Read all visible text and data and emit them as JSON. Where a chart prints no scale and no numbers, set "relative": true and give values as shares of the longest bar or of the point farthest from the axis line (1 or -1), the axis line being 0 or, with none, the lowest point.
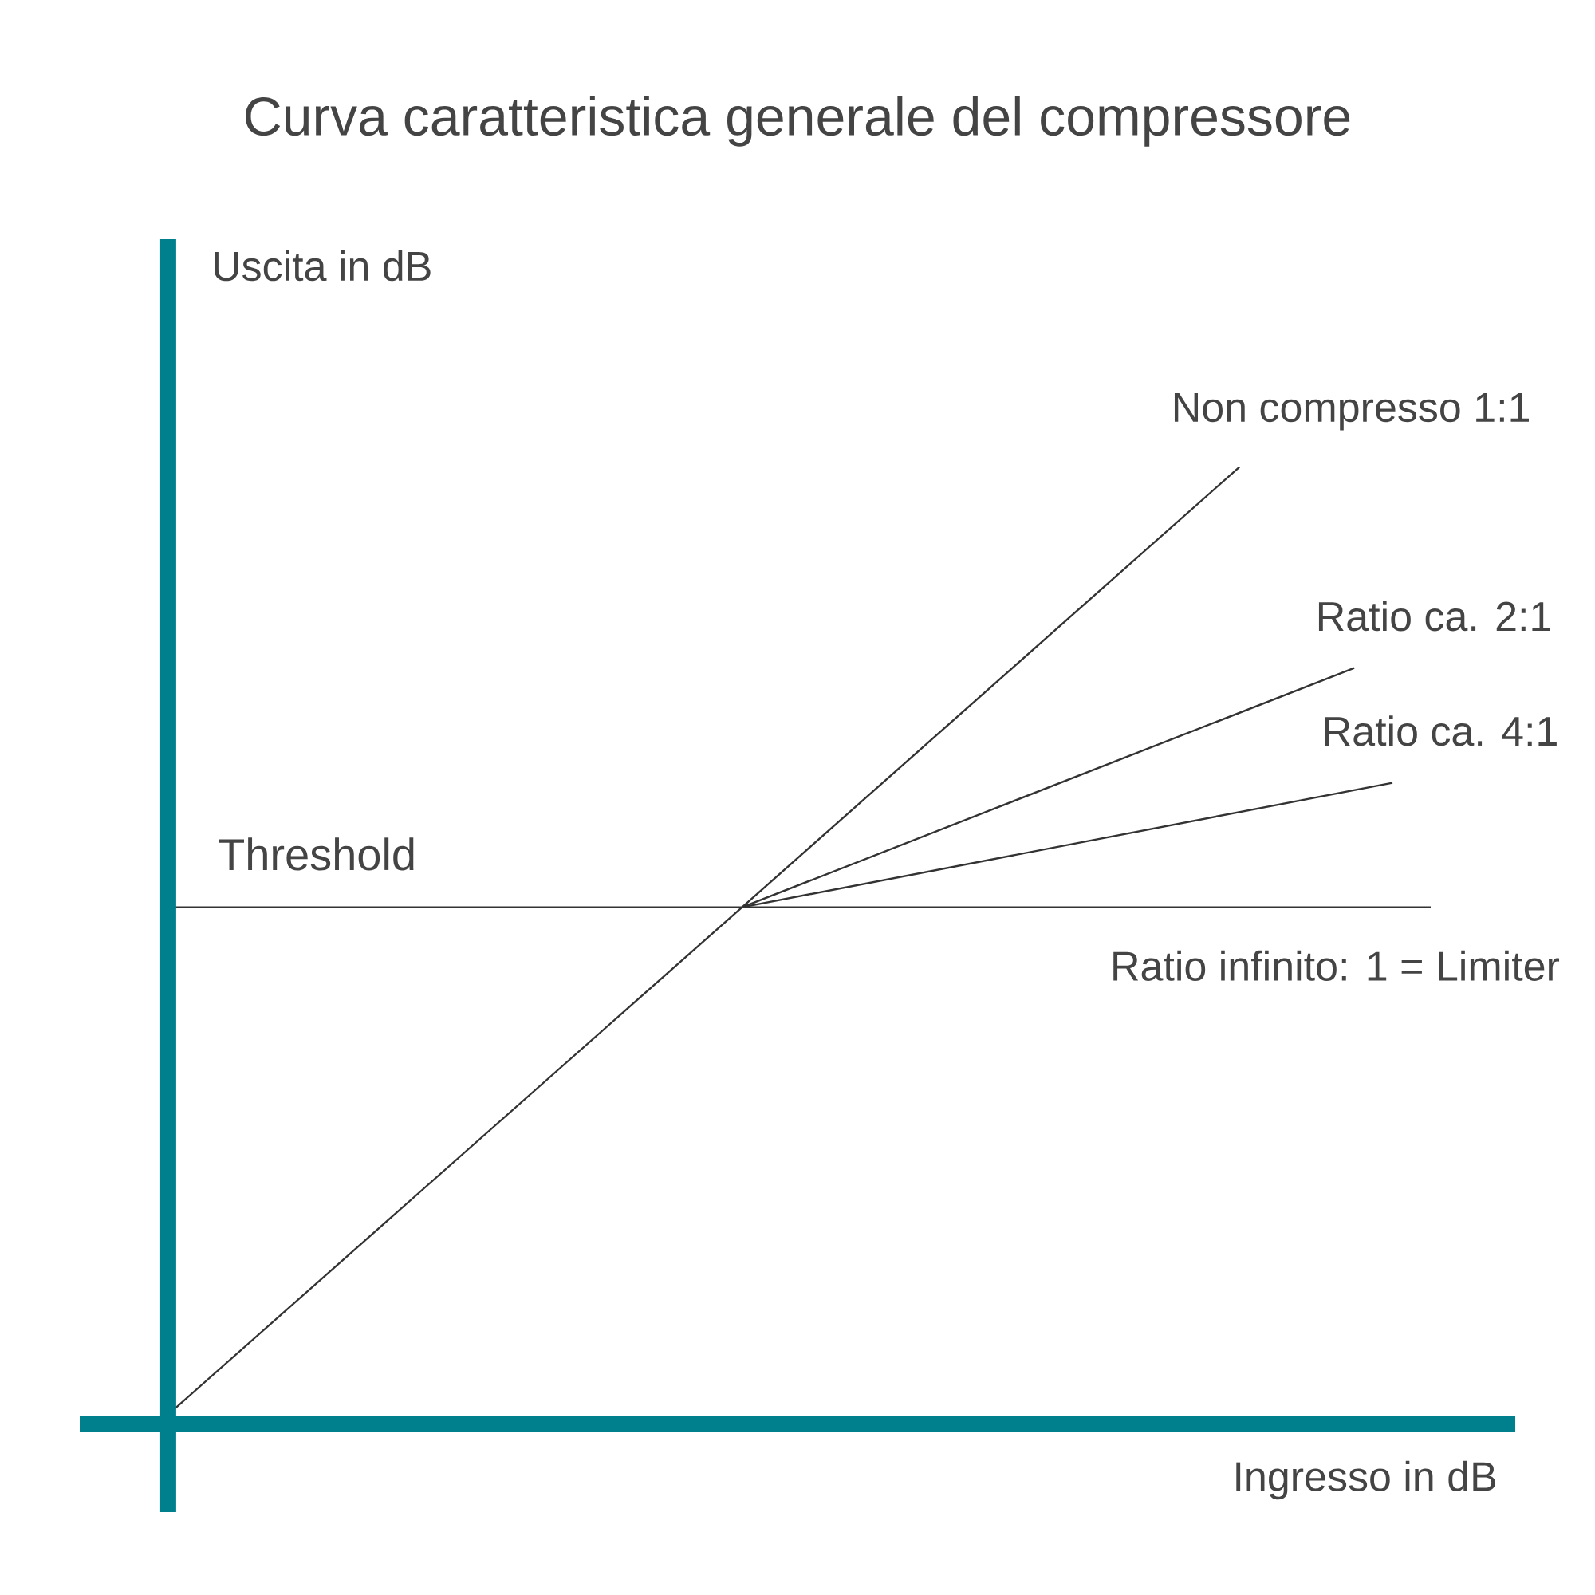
{
  "chart_data": {
    "type": "line",
    "title": "Curva caratteristica generale del compressore",
    "xlabel": "Ingresso in dB",
    "ylabel": "Uscita in dB",
    "relative": true,
    "legend": false,
    "marker": "none",
    "line_style": "solid",
    "categories": [
      null,
      null,
      null,
      null,
      null,
      null,
      null,
      null,
      null,
      null,
      null,
      null,
      null,
      null,
      null,
      null,
      null,
      null,
      null,
      null,
      null,
      null,
      null,
      null,
      null,
      null,
      null,
      null,
      null,
      null,
      null,
      null,
      null,
      null
    ],
    "series": [
      {
        "name": "Non compresso 1:1",
        "color": "#333333",
        "values": [
          0.01,
          null,
          null,
          null,
          null,
          null,
          null,
          null,
          null,
          null,
          null,
          null,
          null,
          null,
          null,
          0.54,
          null,
          null,
          null,
          null,
          null,
          null,
          null,
          null,
          null,
          null,
          null,
          null,
          1,
          null,
          null,
          null,
          null,
          null
        ]
      },
      {
        "name": "Ratio ca. 2:1",
        "color": "#333333",
        "values": [
          null,
          null,
          null,
          null,
          null,
          null,
          null,
          null,
          null,
          null,
          null,
          null,
          null,
          null,
          null,
          0.54,
          null,
          null,
          null,
          null,
          null,
          null,
          null,
          null,
          null,
          null,
          null,
          null,
          null,
          null,
          null,
          0.79,
          null,
          null
        ]
      },
      {
        "name": "Ratio ca. 4:1",
        "color": "#333333",
        "values": [
          null,
          null,
          null,
          null,
          null,
          null,
          null,
          null,
          null,
          null,
          null,
          null,
          null,
          null,
          null,
          0.54,
          null,
          null,
          null,
          null,
          null,
          null,
          null,
          null,
          null,
          null,
          null,
          null,
          null,
          null,
          null,
          null,
          0.67,
          null
        ]
      },
      {
        "name": "Ratio infinito: 1 = Limiter",
        "color": "#333333",
        "values": [
          0.54,
          null,
          null,
          null,
          null,
          null,
          null,
          null,
          null,
          null,
          null,
          null,
          null,
          null,
          null,
          null,
          null,
          null,
          null,
          null,
          null,
          null,
          null,
          null,
          null,
          null,
          null,
          null,
          null,
          null,
          null,
          null,
          null,
          0.54
        ]
      }
    ],
    "annotations": [
      {
        "text": "Threshold",
        "y": 0.54
      }
    ]
  }
}
